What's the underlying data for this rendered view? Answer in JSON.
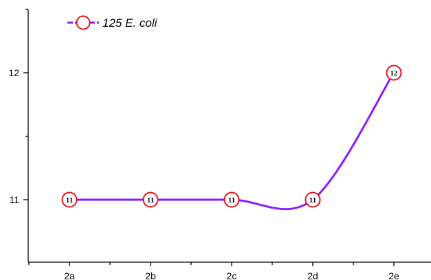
{
  "chart_data": {
    "type": "line",
    "categories": [
      "2a",
      "2b",
      "2c",
      "2d",
      "2e"
    ],
    "series": [
      {
        "name": "125 E. coli",
        "values": [
          11,
          11,
          11,
          11,
          12
        ],
        "data_labels": [
          "11",
          "11",
          "11",
          "11",
          "12"
        ]
      }
    ],
    "ylim": [
      10.5,
      12.5
    ],
    "yticks": [
      11,
      12
    ],
    "ytick_labels": [
      "11",
      "12"
    ],
    "line_color": "#8a1aff",
    "marker_color": "#e8141e",
    "marker": "open-circle",
    "curve": "smooth",
    "grid": false,
    "legend_position": "top-left",
    "title": "",
    "xlabel": "",
    "ylabel": ""
  }
}
